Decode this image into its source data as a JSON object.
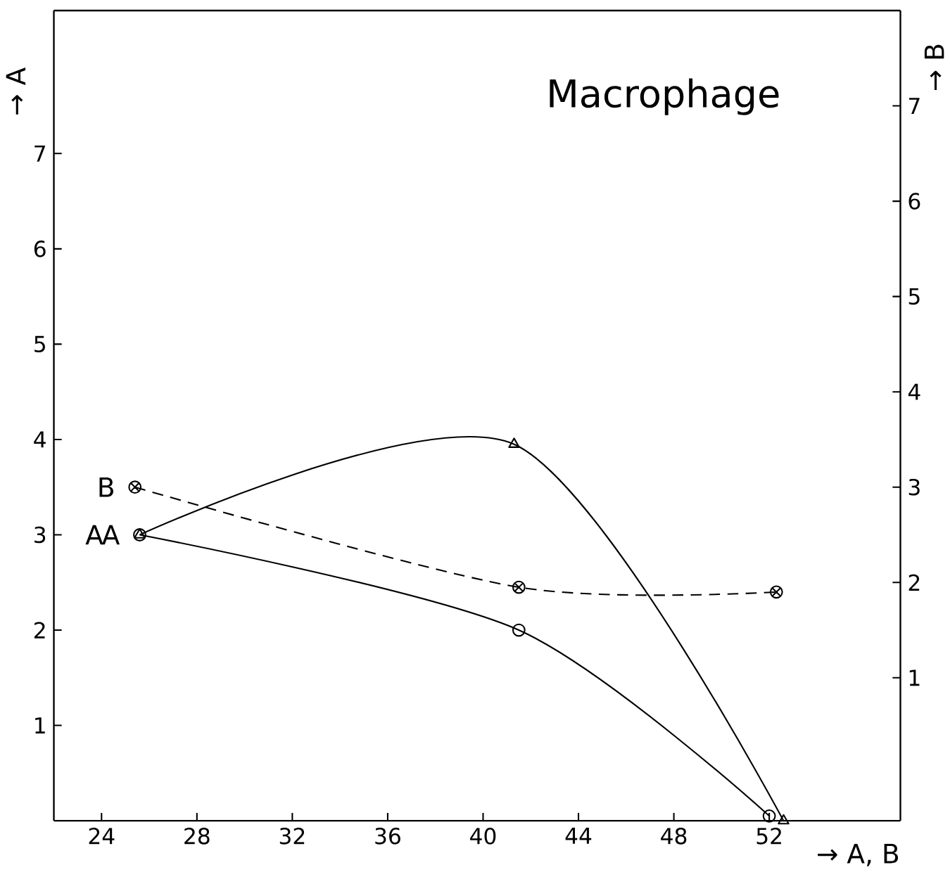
{
  "chart_data": {
    "type": "line",
    "title": "Macrophage",
    "xlabel": "→ A, B",
    "ylabel": "→ A",
    "y2label": "→ B",
    "xlim": [
      22,
      57.5
    ],
    "xticks": [
      24,
      28,
      32,
      36,
      40,
      44,
      48,
      52
    ],
    "ylim": [
      0,
      8.5
    ],
    "yticks": [
      1,
      2,
      3,
      4,
      5,
      6,
      7
    ],
    "y2lim": [
      -0.5,
      8.0
    ],
    "y2ticks": [
      1,
      2,
      3,
      4,
      5,
      6,
      7
    ],
    "series": [
      {
        "name": "A",
        "color": "#000000",
        "marker": "circle",
        "line_style": "solid",
        "x": [
          25.6,
          41.5,
          52.0
        ],
        "values": [
          3.0,
          2.0,
          0.05
        ]
      },
      {
        "name": "A",
        "color": "#000000",
        "marker": "triangle",
        "line_style": "solid",
        "x": [
          25.6,
          41.3,
          52.6
        ],
        "values": [
          3.0,
          3.95,
          0.0
        ]
      },
      {
        "name": "B",
        "color": "#000000",
        "marker": "cross",
        "line_style": "dashed",
        "axis": "y2",
        "x": [
          25.4,
          41.5,
          52.3
        ],
        "values": [
          3.0,
          1.95,
          1.9
        ]
      }
    ]
  }
}
